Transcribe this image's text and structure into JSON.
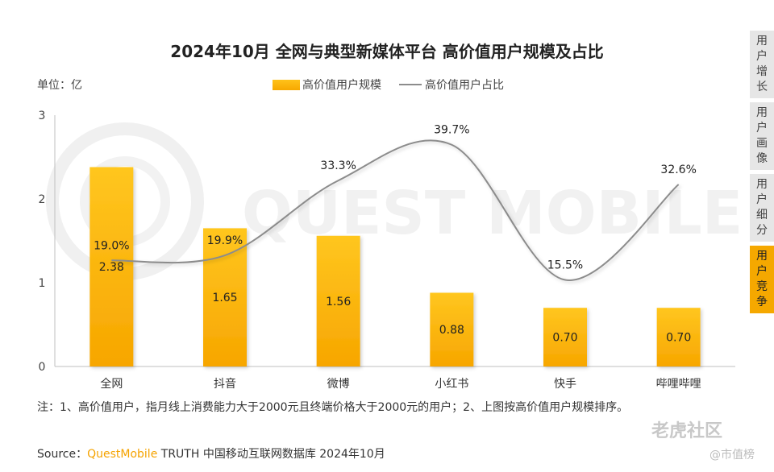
{
  "title": "2024年10月 全网与典型新媒体平台 高价值用户规模及占比",
  "unit_label": "单位：亿",
  "legend": {
    "bar": "高价值用户规模",
    "line": "高价值用户占比"
  },
  "note": "注：1、高价值用户，指月线上消费能力大于2000元且终端价格大于2000元的用户；2、上图按高价值用户规模排序。",
  "source": {
    "prefix": "Source：",
    "brand": "QuestMobile",
    "rest": " TRUTH 中国移动互联网数据库 2024年10月"
  },
  "watermark": "QUEST MOBILE",
  "watermark_right": "老虎社区",
  "watermark_right2": "@市值榜",
  "side_tabs": [
    {
      "label": "用户增长",
      "chars": [
        "用",
        "户",
        "增",
        "长"
      ],
      "active": false
    },
    {
      "label": "用户画像",
      "chars": [
        "用",
        "户",
        "画",
        "像"
      ],
      "active": false
    },
    {
      "label": "用户细分",
      "chars": [
        "用",
        "户",
        "细",
        "分"
      ],
      "active": false
    },
    {
      "label": "用户竞争",
      "chars": [
        "用",
        "户",
        "竞",
        "争"
      ],
      "active": true
    }
  ],
  "colors": {
    "bar_top": "#ffc61f",
    "bar_bottom": "#f7a600",
    "line": "#8c8c8c",
    "accent": "#f5a800"
  },
  "chart_data": {
    "type": "bar",
    "categories": [
      "全网",
      "抖音",
      "微博",
      "小红书",
      "快手",
      "哔哩哔哩"
    ],
    "series": [
      {
        "name": "高价值用户规模",
        "type": "bar",
        "values": [
          2.38,
          1.65,
          1.56,
          0.88,
          0.7,
          0.7
        ],
        "labels": [
          "2.38",
          "1.65",
          "1.56",
          "0.88",
          "0.70",
          "0.70"
        ]
      },
      {
        "name": "高价值用户占比",
        "type": "line",
        "values": [
          19.0,
          19.9,
          33.3,
          39.7,
          15.5,
          32.6
        ],
        "labels": [
          "19.0%",
          "19.9%",
          "33.3%",
          "39.7%",
          "15.5%",
          "32.6%"
        ]
      }
    ],
    "ylim": [
      0,
      3
    ],
    "yticks": [
      "0",
      "1",
      "2",
      "3"
    ],
    "grid": false
  }
}
